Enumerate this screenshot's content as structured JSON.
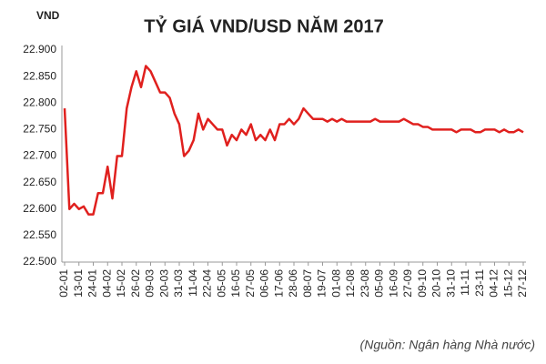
{
  "chart_data": {
    "type": "line",
    "title": "TỶ GIÁ VND/USD NĂM 2017",
    "y_label": "VND",
    "source": "(Nguồn: Ngân hàng Nhà nước)",
    "color": "#e0201e",
    "categories": [
      "02-01",
      null,
      null,
      "13-01",
      null,
      null,
      "24-01",
      null,
      null,
      "04-02",
      null,
      null,
      "15-02",
      null,
      null,
      "26-02",
      null,
      null,
      "09-03",
      null,
      null,
      "20-03",
      null,
      null,
      "31-03",
      null,
      null,
      "11-04",
      null,
      null,
      "22-04",
      null,
      null,
      "05-05",
      null,
      null,
      "16-05",
      null,
      null,
      "27-05",
      null,
      null,
      "06-06",
      null,
      null,
      "17-06",
      null,
      null,
      "28-06",
      null,
      null,
      "08-07",
      null,
      null,
      "19-07",
      null,
      null,
      "01-08",
      null,
      null,
      "12-08",
      null,
      null,
      "23-08",
      null,
      null,
      "05-09",
      null,
      null,
      "16-09",
      null,
      null,
      "27-09",
      null,
      null,
      "09-10",
      null,
      null,
      "20-10",
      null,
      null,
      "31-10",
      null,
      null,
      "11-11",
      null,
      null,
      "23-11",
      null,
      null,
      "04-12",
      null,
      null,
      "15-12",
      null,
      null,
      "27-12"
    ],
    "values": [
      22790,
      22600,
      22610,
      22600,
      22605,
      22590,
      22590,
      22630,
      22630,
      22680,
      22620,
      22700,
      22700,
      22790,
      22830,
      22860,
      22830,
      22870,
      22860,
      22840,
      22820,
      22820,
      22810,
      22780,
      22760,
      22700,
      22710,
      22730,
      22780,
      22750,
      22770,
      22760,
      22750,
      22750,
      22720,
      22740,
      22730,
      22750,
      22740,
      22760,
      22730,
      22740,
      22730,
      22750,
      22730,
      22760,
      22760,
      22770,
      22760,
      22770,
      22790,
      22780,
      22770,
      22770,
      22770,
      22765,
      22770,
      22765,
      22770,
      22765,
      22765,
      22765,
      22765,
      22765,
      22765,
      22770,
      22765,
      22765,
      22765,
      22765,
      22765,
      22770,
      22765,
      22760,
      22760,
      22755,
      22755,
      22750,
      22750,
      22750,
      22750,
      22750,
      22745,
      22750,
      22750,
      22750,
      22745,
      22745,
      22750,
      22750,
      22750,
      22745,
      22750,
      22745,
      22745,
      22750,
      22745
    ],
    "ylim": [
      22500,
      22900
    ],
    "yticks": [
      {
        "value": 22500,
        "label": "22.500"
      },
      {
        "value": 22550,
        "label": "22.550"
      },
      {
        "value": 22600,
        "label": "22.600"
      },
      {
        "value": 22650,
        "label": "22.650"
      },
      {
        "value": 22700,
        "label": "22.700"
      },
      {
        "value": 22750,
        "label": "22.750"
      },
      {
        "value": 22800,
        "label": "22.800"
      },
      {
        "value": 22850,
        "label": "22.850"
      },
      {
        "value": 22900,
        "label": "22.900"
      }
    ],
    "grid": false
  }
}
